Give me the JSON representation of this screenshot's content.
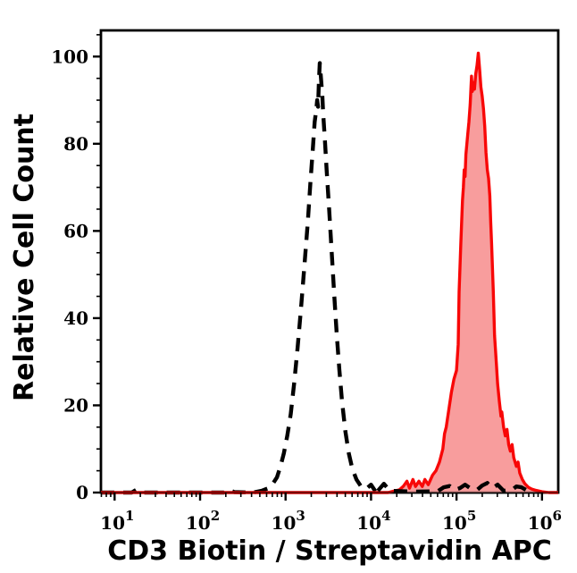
{
  "figure": {
    "background": "#ffffff",
    "axis_color": "#000000",
    "text_color": "#000000"
  },
  "chart_data": {
    "type": "area",
    "title": "",
    "xlabel": "CD3 Biotin / Streptavidin APC",
    "ylabel": "Relative Cell Count",
    "x_scale": "log10",
    "x_range_log": [
      0.84,
      6.19
    ],
    "x_tick_base": "10",
    "x_major_tick_exponents": [
      1,
      2,
      3,
      4,
      5,
      6
    ],
    "ylim": [
      0,
      106
    ],
    "y_major_ticks": [
      0,
      20,
      40,
      60,
      80,
      100
    ],
    "y_minor_step": 5,
    "grid": false,
    "legend_position": "none",
    "baseline_overlay_color": "rgba(0,0,0,0.5)",
    "series": [
      {
        "name": "negative control (black dashed histogram)",
        "type": "line",
        "line_style": "dashed",
        "color": "#000000",
        "fill": "none",
        "layer": "below-stained",
        "points_logx_count": [
          [
            0.84,
            0
          ],
          [
            1.2,
            0
          ],
          [
            1.25,
            0.6
          ],
          [
            1.32,
            0
          ],
          [
            2.28,
            0
          ],
          [
            2.33,
            0.7
          ],
          [
            2.4,
            0.1
          ],
          [
            2.62,
            0
          ],
          [
            2.72,
            0.4
          ],
          [
            2.8,
            1
          ],
          [
            2.85,
            2
          ],
          [
            2.9,
            3.5
          ],
          [
            2.94,
            6
          ],
          [
            2.98,
            9
          ],
          [
            3.02,
            13
          ],
          [
            3.06,
            18
          ],
          [
            3.1,
            25
          ],
          [
            3.14,
            33
          ],
          [
            3.18,
            42
          ],
          [
            3.22,
            52
          ],
          [
            3.26,
            62
          ],
          [
            3.29,
            71
          ],
          [
            3.32,
            79
          ],
          [
            3.34,
            85
          ],
          [
            3.36,
            88
          ],
          [
            3.37,
            90
          ],
          [
            3.38,
            88.5
          ],
          [
            3.39,
            94
          ],
          [
            3.4,
            98.5
          ],
          [
            3.41,
            96
          ],
          [
            3.43,
            91
          ],
          [
            3.44,
            87
          ],
          [
            3.46,
            81
          ],
          [
            3.48,
            74
          ],
          [
            3.51,
            65
          ],
          [
            3.54,
            55
          ],
          [
            3.57,
            45
          ],
          [
            3.6,
            36
          ],
          [
            3.63,
            28
          ],
          [
            3.66,
            21
          ],
          [
            3.7,
            14
          ],
          [
            3.74,
            9
          ],
          [
            3.78,
            5.5
          ],
          [
            3.83,
            3
          ],
          [
            3.88,
            1.5
          ],
          [
            3.94,
            0.8
          ],
          [
            4.0,
            1.8
          ],
          [
            4.05,
            0.3
          ]
        ]
      },
      {
        "name": "CD3 Biotin / Streptavidin APC stained cells (red filled histogram)",
        "type": "area",
        "line_style": "solid",
        "color": "#f80707",
        "fill": "#f89d9d",
        "layer": "main",
        "points_logx_count": [
          [
            0.84,
            0
          ],
          [
            4.2,
            0
          ],
          [
            4.28,
            0.4
          ],
          [
            4.33,
            0.6
          ],
          [
            4.38,
            1.5
          ],
          [
            4.42,
            2.6
          ],
          [
            4.45,
            1
          ],
          [
            4.49,
            3
          ],
          [
            4.52,
            1.4
          ],
          [
            4.56,
            2.6
          ],
          [
            4.6,
            1.4
          ],
          [
            4.63,
            3
          ],
          [
            4.67,
            1.8
          ],
          [
            4.72,
            4
          ],
          [
            4.76,
            5
          ],
          [
            4.8,
            7
          ],
          [
            4.84,
            10
          ],
          [
            4.86,
            13.5
          ],
          [
            4.88,
            15
          ],
          [
            4.91,
            19
          ],
          [
            4.94,
            23
          ],
          [
            4.97,
            26
          ],
          [
            5.0,
            28
          ],
          [
            5.02,
            34
          ],
          [
            5.03,
            46
          ],
          [
            5.05,
            57
          ],
          [
            5.07,
            67
          ],
          [
            5.08,
            70
          ],
          [
            5.09,
            74
          ],
          [
            5.1,
            72.5
          ],
          [
            5.11,
            77.5
          ],
          [
            5.13,
            82
          ],
          [
            5.145,
            85
          ],
          [
            5.16,
            89
          ],
          [
            5.175,
            95.5
          ],
          [
            5.185,
            92
          ],
          [
            5.2,
            94
          ],
          [
            5.21,
            92.5
          ],
          [
            5.225,
            96
          ],
          [
            5.24,
            98
          ],
          [
            5.255,
            100.8
          ],
          [
            5.27,
            97
          ],
          [
            5.285,
            93
          ],
          [
            5.3,
            91
          ],
          [
            5.315,
            88
          ],
          [
            5.33,
            84
          ],
          [
            5.345,
            78
          ],
          [
            5.36,
            74
          ],
          [
            5.375,
            72
          ],
          [
            5.39,
            68
          ],
          [
            5.4,
            62
          ],
          [
            5.41,
            57
          ],
          [
            5.43,
            46
          ],
          [
            5.445,
            36
          ],
          [
            5.465,
            30
          ],
          [
            5.48,
            25
          ],
          [
            5.5,
            21
          ],
          [
            5.52,
            17.5
          ],
          [
            5.53,
            18.5
          ],
          [
            5.55,
            15
          ],
          [
            5.57,
            13
          ],
          [
            5.59,
            14.5
          ],
          [
            5.61,
            11
          ],
          [
            5.63,
            9.5
          ],
          [
            5.65,
            11
          ],
          [
            5.67,
            8
          ],
          [
            5.7,
            6
          ],
          [
            5.72,
            7
          ],
          [
            5.74,
            4.5
          ],
          [
            5.77,
            3
          ],
          [
            5.8,
            2
          ],
          [
            5.84,
            1.2
          ],
          [
            5.88,
            0.8
          ],
          [
            5.93,
            0.5
          ],
          [
            6.0,
            0.2
          ],
          [
            6.08,
            0
          ],
          [
            6.19,
            0
          ]
        ]
      },
      {
        "name": "negative control near-zero tail (black dashed, drawn over red fill)",
        "type": "line",
        "line_style": "dashed",
        "color": "#000000",
        "fill": "none",
        "layer": "above-stained",
        "points_logx_count": [
          [
            4.08,
            0.4
          ],
          [
            4.15,
            2
          ],
          [
            4.22,
            0.4
          ],
          [
            4.5,
            0.2
          ],
          [
            4.78,
            0.3
          ],
          [
            4.85,
            1.2
          ],
          [
            4.92,
            1.5
          ],
          [
            4.98,
            0.6
          ],
          [
            5.04,
            1
          ],
          [
            5.1,
            1.8
          ],
          [
            5.16,
            1
          ],
          [
            5.24,
            0.6
          ],
          [
            5.3,
            1.6
          ],
          [
            5.36,
            2.2
          ],
          [
            5.42,
            1
          ],
          [
            5.48,
            1.8
          ],
          [
            5.55,
            0.4
          ],
          [
            5.65,
            0.6
          ],
          [
            5.7,
            1.4
          ],
          [
            5.76,
            1.2
          ],
          [
            5.83,
            0.4
          ]
        ]
      }
    ]
  }
}
